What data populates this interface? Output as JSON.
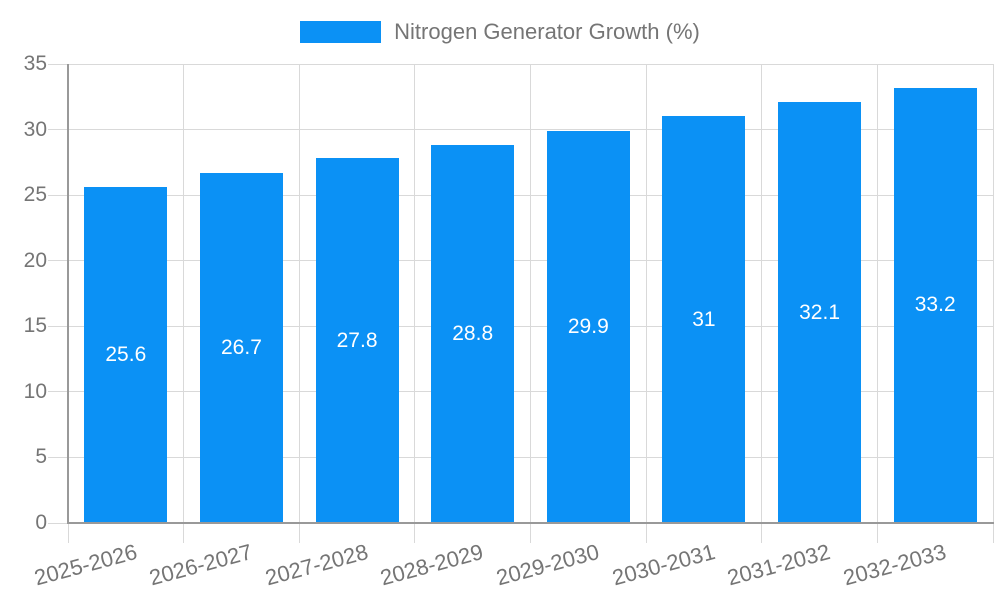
{
  "legend": {
    "label": "Nitrogen Generator Growth (%)",
    "position": "top-center"
  },
  "chart_data": {
    "type": "bar",
    "title": "Nitrogen Generator Growth (%)",
    "series_name": "Nitrogen Generator Growth (%)",
    "categories": [
      "2025-2026",
      "2026-2027",
      "2027-2028",
      "2028-2029",
      "2029-2030",
      "2030-2031",
      "2031-2032",
      "2032-2033"
    ],
    "values": [
      25.6,
      26.7,
      27.8,
      28.8,
      29.9,
      31,
      32.1,
      33.2
    ],
    "value_labels": [
      "25.6",
      "26.7",
      "27.8",
      "28.8",
      "29.9",
      "31",
      "32.1",
      "33.2"
    ],
    "xlabel": "",
    "ylabel": "",
    "ylim": [
      0,
      35
    ],
    "yticks": [
      0,
      5,
      10,
      15,
      20,
      25,
      30,
      35
    ],
    "grid": true,
    "legend_position": "top-center",
    "x_label_rotation_deg": -15,
    "bar_color": "#0b91f5",
    "value_label_position": "inside-center"
  },
  "colors": {
    "bar": "#0b91f5",
    "grid": "#d9d9d9",
    "axis": "#999999",
    "tick_text": "#757575",
    "legend_text": "#757575",
    "value_label": "#ffffff",
    "background": "#ffffff"
  }
}
